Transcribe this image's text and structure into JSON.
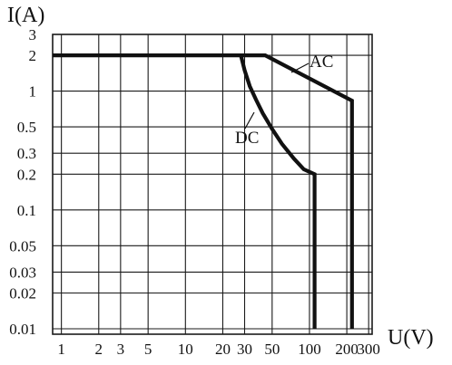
{
  "chart_data": {
    "type": "line",
    "title": "",
    "xlabel": "U(V)",
    "ylabel": "I(A)",
    "xscale": "log",
    "yscale": "log",
    "xlim": [
      0.85,
      320
    ],
    "ylim": [
      0.009,
      3
    ],
    "grid": true,
    "x_ticks": [
      1,
      2,
      3,
      5,
      10,
      20,
      30,
      50,
      100,
      200,
      300
    ],
    "x_tick_labels": [
      "1",
      "2",
      "3",
      "5",
      "10",
      "20",
      "30",
      "50",
      "100",
      "200",
      "300"
    ],
    "y_ticks": [
      0.01,
      0.02,
      0.03,
      0.05,
      0.1,
      0.2,
      0.3,
      0.5,
      1,
      2,
      3
    ],
    "y_tick_labels": [
      "0.01",
      "0.02",
      "0.03",
      "0.05",
      "0.1",
      "0.2",
      "0.3",
      "0.5",
      "1",
      "2",
      "3"
    ],
    "series": [
      {
        "name": "AC",
        "x": [
          0.85,
          44,
          220,
          220
        ],
        "y": [
          2,
          2,
          0.83,
          0.01
        ]
      },
      {
        "name": "DC",
        "x": [
          28,
          30,
          33,
          37,
          42,
          50,
          60,
          75,
          90,
          110,
          110
        ],
        "y": [
          2,
          1.5,
          1.1,
          0.85,
          0.65,
          0.48,
          0.36,
          0.27,
          0.22,
          0.2,
          0.01
        ]
      }
    ]
  }
}
